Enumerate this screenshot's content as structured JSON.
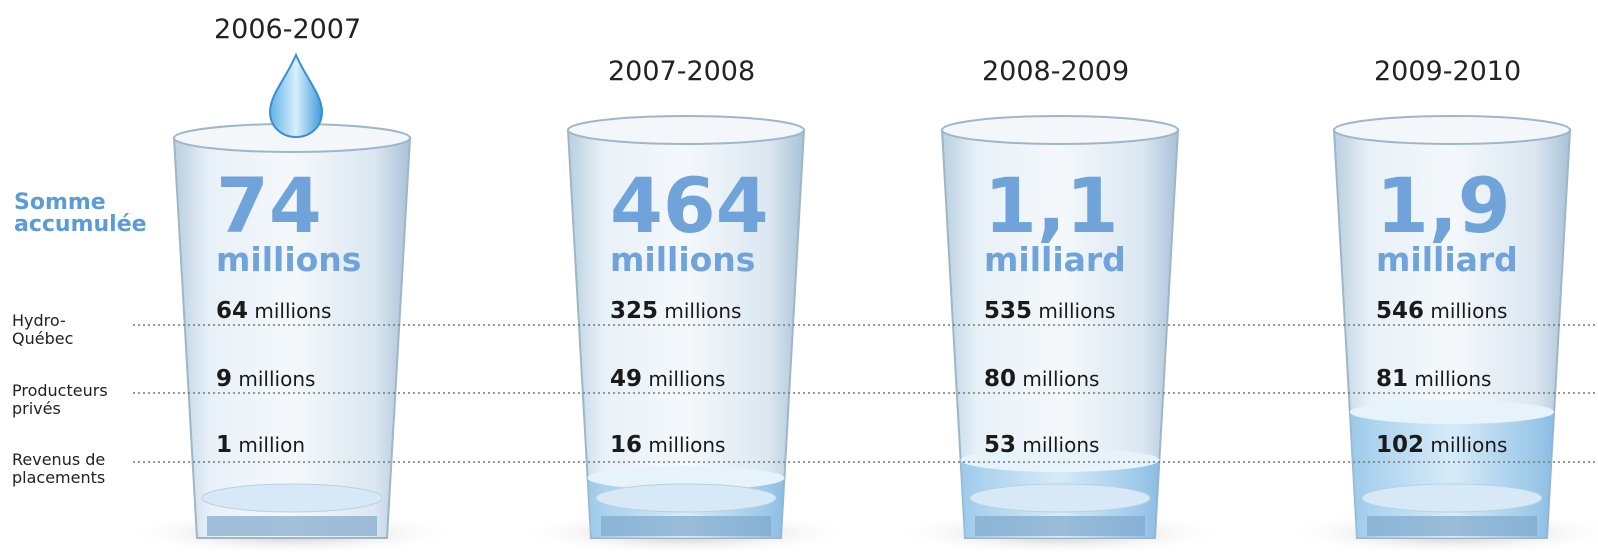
{
  "heading": "Somme accumulée",
  "categories": [
    "Hydro-Québec",
    "Producteurs privés",
    "Revenus de placements"
  ],
  "years": [
    {
      "period": "2006-2007",
      "total": {
        "number": 74,
        "unit": "millions"
      },
      "amounts": [
        {
          "number": 64,
          "unit": "millions"
        },
        {
          "number": 9,
          "unit": "millions"
        },
        {
          "number": 1,
          "unit": "million"
        }
      ]
    },
    {
      "period": "2007-2008",
      "total": {
        "number": 464,
        "unit": "millions"
      },
      "amounts": [
        {
          "number": 325,
          "unit": "millions"
        },
        {
          "number": 49,
          "unit": "millions"
        },
        {
          "number": 16,
          "unit": "millions"
        }
      ]
    },
    {
      "period": "2008-2009",
      "total": {
        "number": "1,1",
        "unit": "milliard"
      },
      "amounts": [
        {
          "number": 535,
          "unit": "millions"
        },
        {
          "number": 80,
          "unit": "millions"
        },
        {
          "number": 53,
          "unit": "millions"
        }
      ]
    },
    {
      "period": "2009-2010",
      "total": {
        "number": "1,9",
        "unit": "milliard"
      },
      "amounts": [
        {
          "number": 546,
          "unit": "millions"
        },
        {
          "number": 81,
          "unit": "millions"
        },
        {
          "number": 102,
          "unit": "millions"
        }
      ]
    }
  ]
}
